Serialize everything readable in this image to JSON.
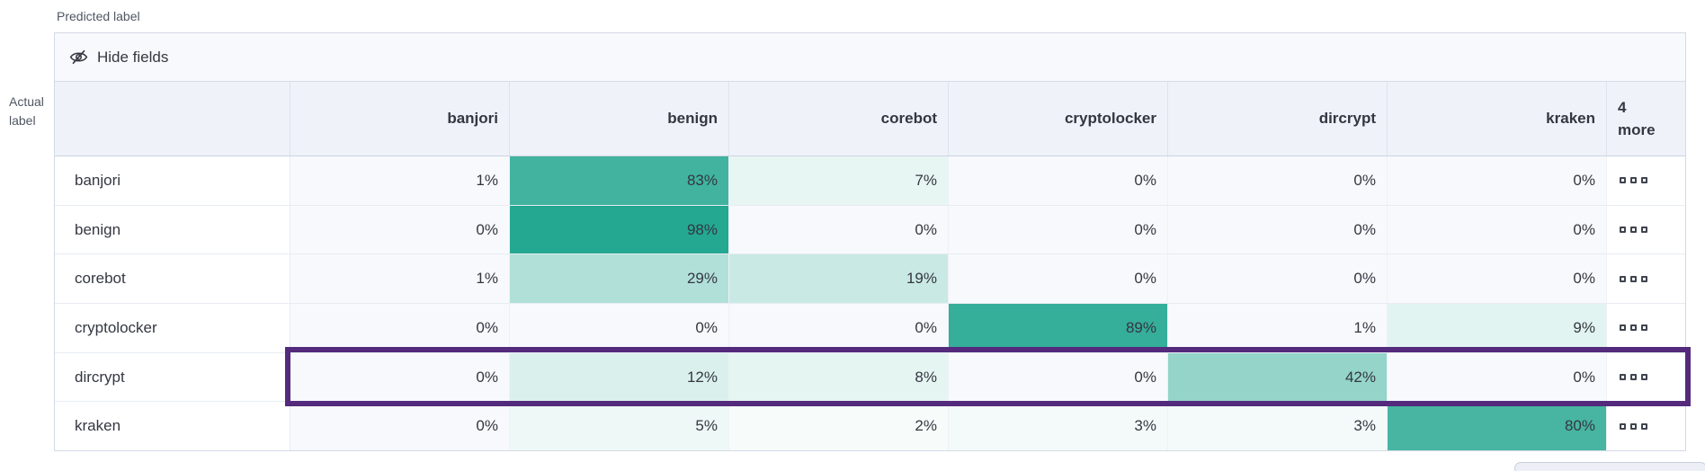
{
  "axis": {
    "predicted_label": "Predicted label",
    "actual_label_line1": "Actual",
    "actual_label_line2": "label"
  },
  "toolbar": {
    "hide_fields_label": "Hide fields"
  },
  "grid": {
    "columns": [
      "banjori",
      "benign",
      "corebot",
      "cryptolocker",
      "dircrypt",
      "kraken"
    ],
    "more_header": {
      "line1": "4",
      "line2": "more"
    },
    "more_cell_icon": "three-squares-ellipsis",
    "rows": [
      {
        "label": "banjori",
        "values": [
          1,
          83,
          7,
          0,
          0,
          0
        ],
        "highlighted": false
      },
      {
        "label": "benign",
        "values": [
          0,
          98,
          0,
          0,
          0,
          0
        ],
        "highlighted": false
      },
      {
        "label": "corebot",
        "values": [
          1,
          29,
          19,
          0,
          0,
          0
        ],
        "highlighted": false
      },
      {
        "label": "cryptolocker",
        "values": [
          0,
          0,
          0,
          89,
          1,
          9
        ],
        "highlighted": false
      },
      {
        "label": "dircrypt",
        "values": [
          0,
          12,
          8,
          0,
          42,
          0
        ],
        "highlighted": true
      },
      {
        "label": "kraken",
        "values": [
          0,
          5,
          2,
          3,
          3,
          80
        ],
        "highlighted": false
      }
    ],
    "value_suffix": "%"
  },
  "colors": {
    "heat_base_teal": "#20a68f",
    "zero_cell": "#f7f9fc",
    "highlight_purple": "#542a7d",
    "header_bg": "#eff2f8",
    "toolbar_bg": "#f8f9fc",
    "text": "#343741"
  },
  "chart_data": {
    "type": "heatmap",
    "xlabel": "Predicted label",
    "ylabel": "Actual label",
    "x_categories_visible": [
      "banjori",
      "benign",
      "corebot",
      "cryptolocker",
      "dircrypt",
      "kraken"
    ],
    "x_categories_collapsed": "4 more",
    "y_categories": [
      "banjori",
      "benign",
      "corebot",
      "cryptolocker",
      "dircrypt",
      "kraken"
    ],
    "values_percent": [
      [
        1,
        83,
        7,
        0,
        0,
        0
      ],
      [
        0,
        98,
        0,
        0,
        0,
        0
      ],
      [
        1,
        29,
        19,
        0,
        0,
        0
      ],
      [
        0,
        0,
        0,
        89,
        1,
        9
      ],
      [
        0,
        12,
        8,
        0,
        42,
        0
      ],
      [
        0,
        5,
        2,
        3,
        3,
        80
      ]
    ],
    "highlighted_row": "dircrypt",
    "legend": "off",
    "color_scale": "white-to-teal by cell percentage"
  }
}
